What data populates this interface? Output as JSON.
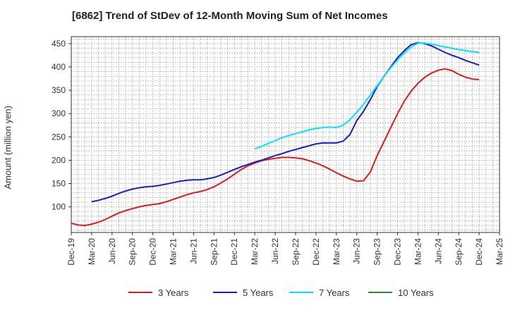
{
  "chart_data": {
    "type": "line",
    "title": "[6862]  Trend of StDev of 12-Month Moving Sum of Net Incomes",
    "xlabel": "",
    "ylabel": "Amount (million yen)",
    "ylim": [
      45,
      465
    ],
    "yticks": [
      100,
      150,
      200,
      250,
      300,
      350,
      400,
      450
    ],
    "x_ticks": [
      "Dec-19",
      "Mar-20",
      "Jun-20",
      "Sep-20",
      "Dec-20",
      "Mar-21",
      "Jun-21",
      "Sep-21",
      "Dec-21",
      "Mar-22",
      "Jun-22",
      "Sep-22",
      "Dec-22",
      "Mar-23",
      "Jun-23",
      "Sep-23",
      "Dec-23",
      "Mar-24",
      "Jun-24",
      "Sep-24",
      "Dec-24",
      "Mar-25"
    ],
    "grid": true,
    "legend_position": "bottom",
    "series": [
      {
        "name": "3 Years",
        "color": "#e31a1c",
        "x": [
          "Dec-19",
          "Jan-20",
          "Feb-20",
          "Mar-20",
          "Apr-20",
          "May-20",
          "Jun-20",
          "Jul-20",
          "Aug-20",
          "Sep-20",
          "Oct-20",
          "Nov-20",
          "Dec-20",
          "Jan-21",
          "Feb-21",
          "Mar-21",
          "Apr-21",
          "May-21",
          "Jun-21",
          "Jul-21",
          "Aug-21",
          "Sep-21",
          "Oct-21",
          "Nov-21",
          "Dec-21",
          "Jan-22",
          "Feb-22",
          "Mar-22",
          "Apr-22",
          "May-22",
          "Jun-22",
          "Jul-22",
          "Aug-22",
          "Sep-22",
          "Oct-22",
          "Nov-22",
          "Dec-22",
          "Jan-23",
          "Feb-23",
          "Mar-23",
          "Apr-23",
          "May-23",
          "Jun-23",
          "Jul-23",
          "Aug-23",
          "Sep-23",
          "Oct-23",
          "Nov-23",
          "Dec-23",
          "Jan-24",
          "Feb-24",
          "Mar-24",
          "Apr-24",
          "May-24",
          "Jun-24",
          "Jul-24",
          "Aug-24",
          "Sep-24",
          "Oct-24",
          "Nov-24",
          "Dec-24"
        ],
        "values": [
          65,
          61,
          60,
          63,
          67,
          73,
          80,
          87,
          92,
          96,
          100,
          103,
          105,
          107,
          111,
          116,
          121,
          126,
          130,
          133,
          137,
          143,
          151,
          160,
          170,
          180,
          188,
          194,
          199,
          202,
          204,
          206,
          206,
          205,
          203,
          199,
          194,
          188,
          181,
          173,
          166,
          160,
          155,
          156,
          175,
          210,
          240,
          270,
          300,
          327,
          348,
          365,
          378,
          387,
          393,
          396,
          392,
          384,
          378,
          374,
          373
        ]
      },
      {
        "name": "5 Years",
        "color": "#1c1cc8",
        "x": [
          "Mar-20",
          "Apr-20",
          "May-20",
          "Jun-20",
          "Jul-20",
          "Aug-20",
          "Sep-20",
          "Oct-20",
          "Nov-20",
          "Dec-20",
          "Jan-21",
          "Feb-21",
          "Mar-21",
          "Apr-21",
          "May-21",
          "Jun-21",
          "Jul-21",
          "Aug-21",
          "Sep-21",
          "Oct-21",
          "Nov-21",
          "Dec-21",
          "Jan-22",
          "Feb-22",
          "Mar-22",
          "Apr-22",
          "May-22",
          "Jun-22",
          "Jul-22",
          "Aug-22",
          "Sep-22",
          "Oct-22",
          "Nov-22",
          "Dec-22",
          "Jan-23",
          "Feb-23",
          "Mar-23",
          "Apr-23",
          "May-23",
          "Jun-23",
          "Jul-23",
          "Aug-23",
          "Sep-23",
          "Oct-23",
          "Nov-23",
          "Dec-23",
          "Jan-24",
          "Feb-24",
          "Mar-24",
          "Apr-24",
          "May-24",
          "Jun-24",
          "Jul-24",
          "Aug-24",
          "Sep-24",
          "Oct-24",
          "Nov-24",
          "Dec-24"
        ],
        "values": [
          111,
          114,
          118,
          123,
          129,
          134,
          138,
          141,
          143,
          144,
          146,
          149,
          152,
          155,
          157,
          158,
          158,
          160,
          163,
          168,
          174,
          180,
          186,
          191,
          196,
          200,
          205,
          210,
          214,
          219,
          223,
          227,
          231,
          235,
          237,
          237,
          237,
          241,
          255,
          285,
          305,
          330,
          358,
          380,
          400,
          420,
          435,
          448,
          452,
          450,
          445,
          438,
          431,
          425,
          420,
          414,
          409,
          404
        ]
      },
      {
        "name": "7 Years",
        "color": "#00e5ff",
        "x": [
          "Mar-22",
          "Apr-22",
          "May-22",
          "Jun-22",
          "Jul-22",
          "Aug-22",
          "Sep-22",
          "Oct-22",
          "Nov-22",
          "Dec-22",
          "Jan-23",
          "Feb-23",
          "Mar-23",
          "Apr-23",
          "May-23",
          "Jun-23",
          "Jul-23",
          "Aug-23",
          "Sep-23",
          "Oct-23",
          "Nov-23",
          "Dec-23",
          "Jan-24",
          "Feb-24",
          "Mar-24",
          "Apr-24",
          "May-24",
          "Jun-24",
          "Jul-24",
          "Aug-24",
          "Sep-24",
          "Oct-24",
          "Nov-24",
          "Dec-24"
        ],
        "values": [
          224,
          230,
          236,
          242,
          248,
          253,
          257,
          261,
          265,
          268,
          270,
          271,
          270,
          275,
          287,
          303,
          320,
          340,
          360,
          380,
          398,
          415,
          430,
          443,
          451,
          451,
          449,
          446,
          443,
          440,
          437,
          435,
          433,
          431
        ]
      },
      {
        "name": "10 Years",
        "color": "#2a8c2a",
        "x": [],
        "values": []
      }
    ]
  }
}
